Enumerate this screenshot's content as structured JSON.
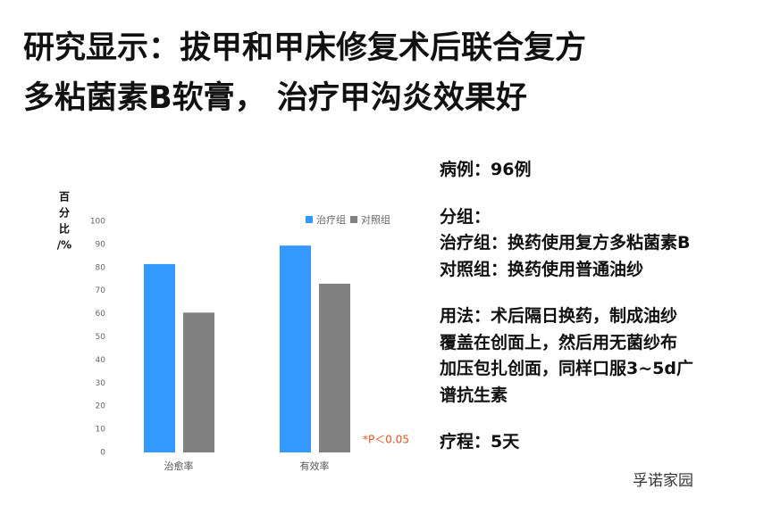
{
  "title": [
    "研究显示：拔甲和甲床修复术后联合复方",
    "多粘菌素B软膏， 治疗甲沟炎效果好"
  ],
  "details": [
    [
      "病例：96例"
    ],
    [
      "分组：",
      "治疗组：换药使用复方多粘菌素B",
      "对照组：换药使用普通油纱"
    ],
    [
      "用法：术后隔日换药，制成油纱",
      "覆盖在创面上，然后用无菌纱布",
      "加压包扎创面，同样口服3~5d广",
      "谱抗生素"
    ],
    [
      "疗程：5天"
    ]
  ],
  "watermark": "孚诺家园",
  "chart_data": {
    "type": "bar",
    "ylabel": [
      "百",
      "分",
      "比",
      "/%"
    ],
    "categories": [
      "治愈率",
      "有效率"
    ],
    "series": [
      {
        "name": "治疗组",
        "color": "#3399ff",
        "values": [
          81.5,
          89.5
        ]
      },
      {
        "name": "对照组",
        "color": "#808080",
        "values": [
          60.5,
          73
        ]
      }
    ],
    "ylim": [
      0,
      100
    ],
    "yticks": [
      0,
      10,
      20,
      30,
      40,
      50,
      60,
      70,
      80,
      90,
      100
    ],
    "annotation": "*P＜0.05"
  }
}
